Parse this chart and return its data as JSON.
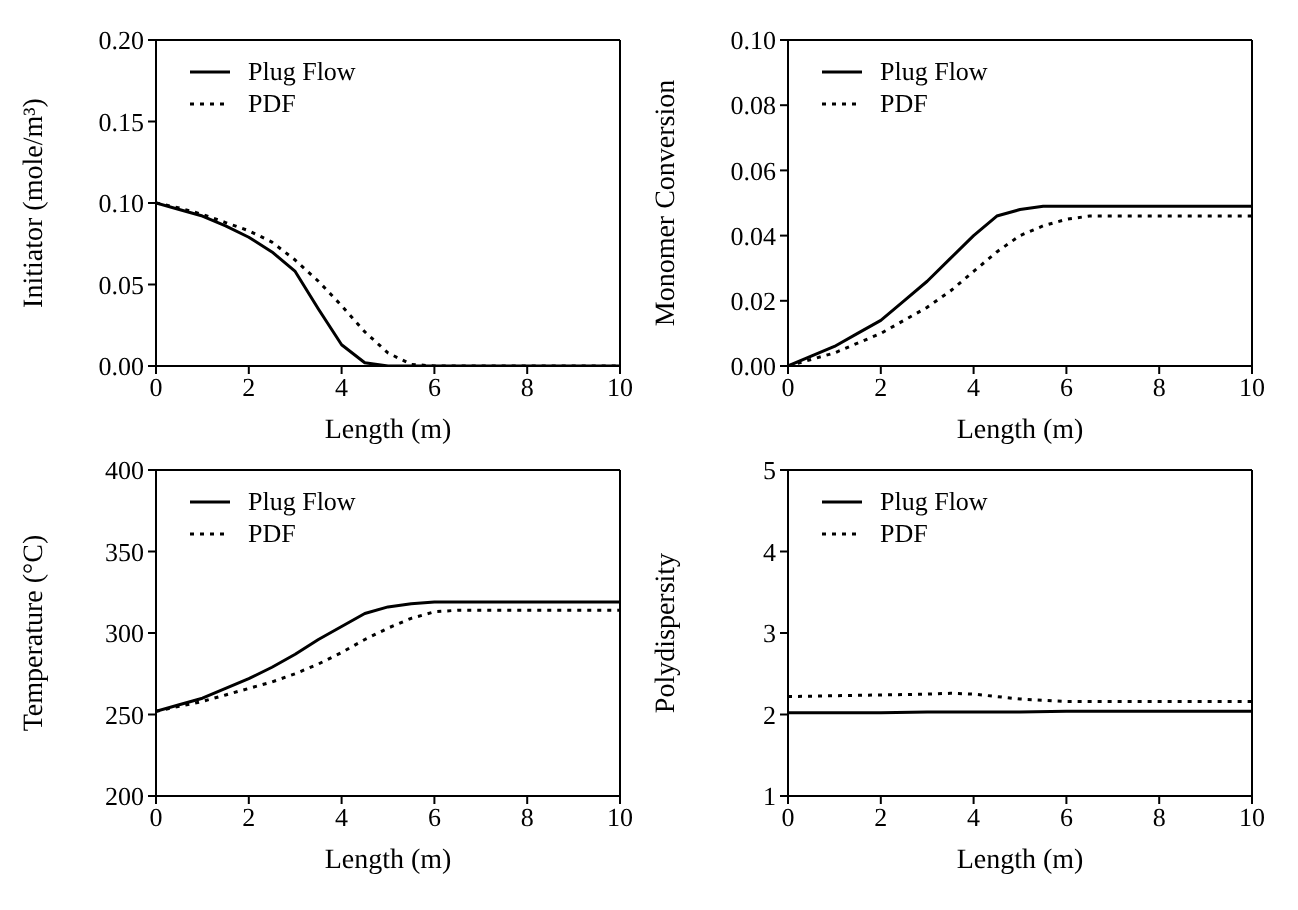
{
  "chart_data": [
    {
      "type": "line",
      "xlabel": "Length (m)",
      "ylabel": "Initiator (mole/m³)",
      "xlim": [
        0,
        10
      ],
      "xticks": [
        0,
        2,
        4,
        6,
        8,
        10
      ],
      "ylim": [
        0,
        0.2
      ],
      "yticks": [
        {
          "value": 0,
          "label": "0.00"
        },
        {
          "value": 0.05,
          "label": "0.05"
        },
        {
          "value": 0.1,
          "label": "0.10"
        },
        {
          "value": 0.15,
          "label": "0.15"
        },
        {
          "value": 0.2,
          "label": "0.20"
        }
      ],
      "legend": "top left",
      "marker": "none",
      "grid": false,
      "x": [
        0,
        0.5,
        1,
        1.5,
        2,
        2.5,
        3,
        3.5,
        4,
        4.5,
        5,
        5.5,
        6,
        7,
        8,
        9,
        10
      ],
      "series": [
        {
          "name": "Plug Flow",
          "color": "#000000",
          "line_style": "solid",
          "values": [
            0.1,
            0.096,
            0.092,
            0.086,
            0.079,
            0.07,
            0.058,
            0.035,
            0.013,
            0.002,
            0,
            0,
            0,
            0,
            0,
            0,
            0
          ]
        },
        {
          "name": "PDF",
          "color": "#000000",
          "line_style": "dotted",
          "values": [
            0.1,
            0.097,
            0.093,
            0.088,
            0.083,
            0.076,
            0.065,
            0.052,
            0.037,
            0.021,
            0.008,
            0.001,
            0,
            0,
            0,
            0,
            0
          ]
        }
      ]
    },
    {
      "type": "line",
      "xlabel": "Length (m)",
      "ylabel": "Monomer Conversion",
      "xlim": [
        0,
        10
      ],
      "xticks": [
        0,
        2,
        4,
        6,
        8,
        10
      ],
      "ylim": [
        0,
        0.1
      ],
      "yticks": [
        {
          "value": 0,
          "label": "0.00"
        },
        {
          "value": 0.02,
          "label": "0.02"
        },
        {
          "value": 0.04,
          "label": "0.04"
        },
        {
          "value": 0.06,
          "label": "0.06"
        },
        {
          "value": 0.08,
          "label": "0.08"
        },
        {
          "value": 0.1,
          "label": "0.10"
        }
      ],
      "legend": "top left",
      "marker": "none",
      "grid": false,
      "x": [
        0,
        0.5,
        1,
        1.5,
        2,
        2.5,
        3,
        3.5,
        4,
        4.5,
        5,
        5.5,
        6,
        6.5,
        7,
        8,
        9,
        10
      ],
      "series": [
        {
          "name": "Plug Flow",
          "color": "#000000",
          "line_style": "solid",
          "values": [
            0,
            0.003,
            0.006,
            0.01,
            0.014,
            0.02,
            0.026,
            0.033,
            0.04,
            0.046,
            0.048,
            0.049,
            0.049,
            0.049,
            0.049,
            0.049,
            0.049,
            0.049
          ]
        },
        {
          "name": "PDF",
          "color": "#000000",
          "line_style": "dotted",
          "values": [
            0,
            0.002,
            0.004,
            0.007,
            0.01,
            0.014,
            0.018,
            0.023,
            0.029,
            0.035,
            0.04,
            0.043,
            0.045,
            0.046,
            0.046,
            0.046,
            0.046,
            0.046
          ]
        }
      ]
    },
    {
      "type": "line",
      "xlabel": "Length (m)",
      "ylabel": "Temperature (°C)",
      "xlim": [
        0,
        10
      ],
      "xticks": [
        0,
        2,
        4,
        6,
        8,
        10
      ],
      "ylim": [
        200,
        400
      ],
      "yticks": [
        200,
        250,
        300,
        350,
        400
      ],
      "legend": "top left",
      "marker": "none",
      "grid": false,
      "x": [
        0,
        0.5,
        1,
        1.5,
        2,
        2.5,
        3,
        3.5,
        4,
        4.5,
        5,
        5.5,
        6,
        6.5,
        7,
        8,
        9,
        10
      ],
      "series": [
        {
          "name": "Plug Flow",
          "color": "#000000",
          "line_style": "solid",
          "values": [
            252,
            256,
            260,
            266,
            272,
            279,
            287,
            296,
            304,
            312,
            316,
            318,
            319,
            319,
            319,
            319,
            319,
            319
          ]
        },
        {
          "name": "PDF",
          "color": "#000000",
          "line_style": "dotted",
          "values": [
            252,
            255,
            258,
            262,
            266,
            270,
            275,
            281,
            288,
            296,
            303,
            309,
            313,
            314,
            314,
            314,
            314,
            314
          ]
        }
      ]
    },
    {
      "type": "line",
      "xlabel": "Length (m)",
      "ylabel": "Polydispersity",
      "xlim": [
        0,
        10
      ],
      "xticks": [
        0,
        2,
        4,
        6,
        8,
        10
      ],
      "ylim": [
        1,
        5
      ],
      "yticks": [
        1,
        2,
        3,
        4,
        5
      ],
      "legend": "top left",
      "marker": "none",
      "grid": false,
      "x": [
        0,
        1,
        2,
        3,
        3.5,
        4,
        4.5,
        5,
        6,
        7,
        8,
        9,
        10
      ],
      "series": [
        {
          "name": "Plug Flow",
          "color": "#000000",
          "line_style": "solid",
          "values": [
            2.02,
            2.02,
            2.02,
            2.03,
            2.03,
            2.03,
            2.03,
            2.03,
            2.04,
            2.04,
            2.04,
            2.04,
            2.04
          ]
        },
        {
          "name": "PDF",
          "color": "#000000",
          "line_style": "dotted",
          "values": [
            2.22,
            2.23,
            2.24,
            2.25,
            2.26,
            2.25,
            2.22,
            2.19,
            2.16,
            2.16,
            2.16,
            2.16,
            2.16
          ]
        }
      ]
    }
  ]
}
